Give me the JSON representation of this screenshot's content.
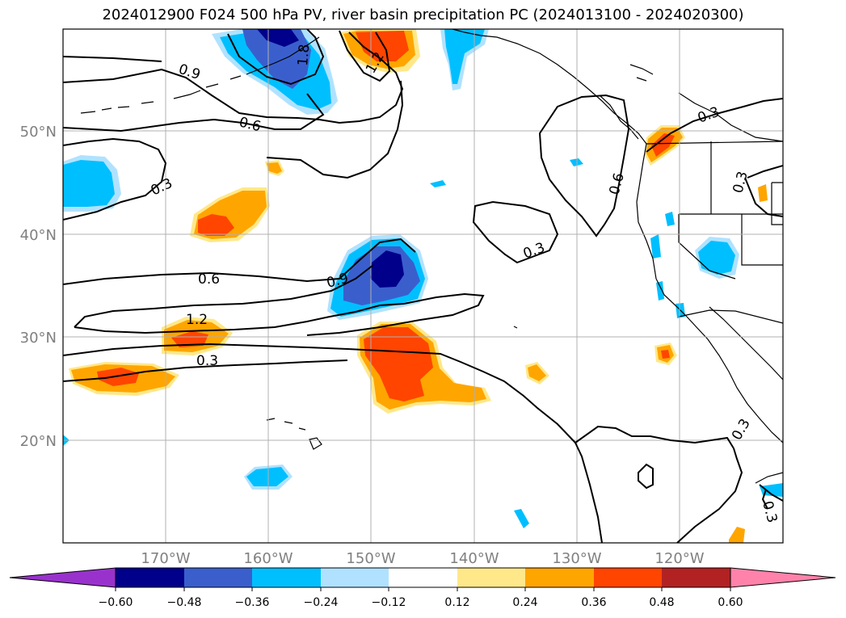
{
  "title": "2024012900 F024 500 hPa PV, river basin precipitation PC (2024013100 - 2024020300)",
  "lat_labels": [
    "50°N",
    "40°N",
    "30°N",
    "20°N"
  ],
  "lon_labels": [
    "170°W",
    "160°W",
    "150°W",
    "140°W",
    "130°W",
    "120°W"
  ],
  "contour_labels": {
    "c09_nw": "0.9",
    "c06_n": "0.6",
    "c03_w": "0.3",
    "c18": "1.8",
    "c12_n": "1.2",
    "c06_mid": "0.6",
    "c09_mid": "0.9",
    "c12_w": "1.2",
    "c03_sw": "0.3",
    "c03_ctr": "0.3",
    "c06_e": "0.6",
    "c03_ne": "0.3",
    "c03_e": "0.3",
    "c03_se": "0.3",
    "c03_sse": "0.3"
  },
  "colorbar": {
    "ticks": [
      "−0.60",
      "−0.48",
      "−0.36",
      "−0.24",
      "−0.12",
      "0.12",
      "0.24",
      "0.36",
      "0.48",
      "0.60"
    ],
    "colors": [
      "#9932cc",
      "#00008b",
      "#3a5fcd",
      "#00bfff",
      "#b0e2ff",
      "#ffffff",
      "#ffe88a",
      "#ffa500",
      "#ff4500",
      "#b22222",
      "#ff82ab"
    ]
  },
  "colors": {
    "deep_blue": "#00008b",
    "mid_blue": "#3a5fcd",
    "sky_blue": "#00bfff",
    "light_blue": "#b0e2ff",
    "light_yellow": "#ffe88a",
    "orange": "#ffa500",
    "red_orange": "#ff4500"
  }
}
